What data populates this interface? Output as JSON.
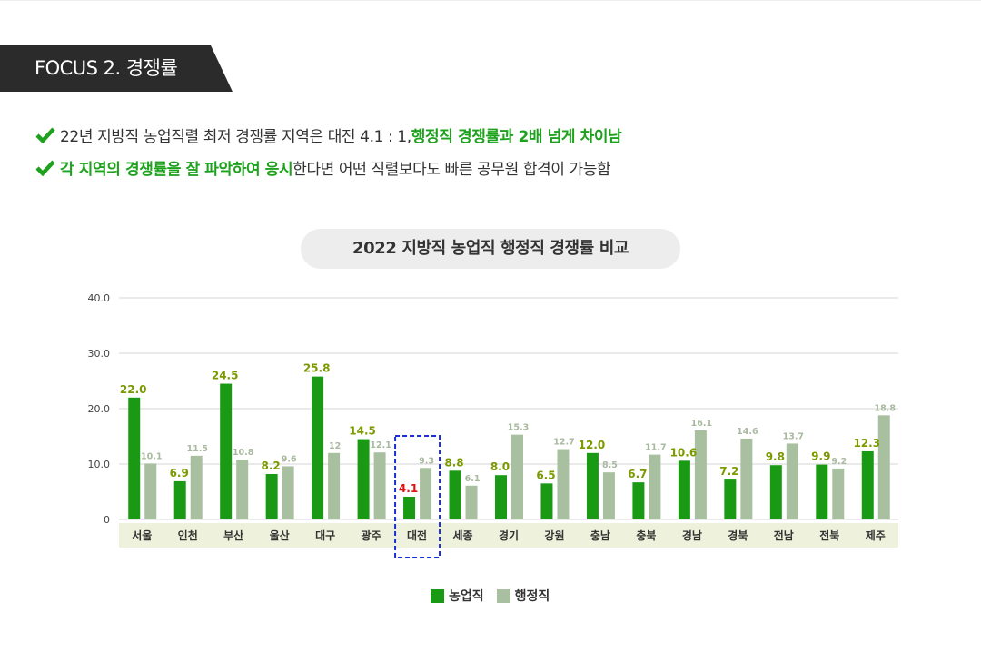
{
  "header": {
    "focus_label": "FOCUS 2. 경쟁률"
  },
  "bullets": [
    {
      "parts": [
        {
          "text": "22년 지방직 농업직렬 최저 경쟁률 지역은 대전 4.1 : 1, ",
          "highlight": false
        },
        {
          "text": "행정직 경쟁률과 2배 넘게 차이남",
          "highlight": true
        }
      ]
    },
    {
      "parts": [
        {
          "text": "각 지역의 경쟁률을 잘 파악하여 응시",
          "highlight": true
        },
        {
          "text": "한다면 어떤 직렬보다도 빠른 공무원 합격이 가능함",
          "highlight": false
        }
      ]
    }
  ],
  "colors": {
    "banner_bg": "#2b2b2b",
    "accent_green": "#1ea21e",
    "bar_green": "#1a9a14",
    "bar_gray": "#a9c0a0",
    "label_green": "#7a9a00",
    "label_gray": "#a9b9a0",
    "label_highlight": "#e01010",
    "category_band": "#eef2dc",
    "highlight_box": "#1a2fd6"
  },
  "chart_data": {
    "type": "bar",
    "title": "2022 지방직 농업직 행정직 경쟁률 비교",
    "categories": [
      "서울",
      "인천",
      "부산",
      "울산",
      "대구",
      "광주",
      "대전",
      "세종",
      "경기",
      "강원",
      "충남",
      "충북",
      "경남",
      "경북",
      "전남",
      "전북",
      "제주"
    ],
    "series": [
      {
        "name": "농업직",
        "values": [
          22.0,
          6.9,
          24.5,
          8.2,
          25.8,
          14.5,
          4.1,
          8.8,
          8.0,
          6.5,
          12.0,
          6.7,
          10.6,
          7.2,
          9.8,
          9.9,
          12.3
        ],
        "labels": [
          "22.0",
          "6.9",
          "24.5",
          "8.2",
          "25.8",
          "14.5",
          "4.1",
          "8.8",
          "8.0",
          "6.5",
          "12.0",
          "6.7",
          "10.6",
          "7.2",
          "9.8",
          "9.9",
          "12.3"
        ]
      },
      {
        "name": "행정직",
        "values": [
          10.1,
          11.5,
          10.8,
          9.6,
          12,
          12.1,
          9.3,
          6.1,
          15.3,
          12.7,
          8.5,
          11.7,
          16.1,
          14.6,
          13.7,
          9.2,
          18.8
        ],
        "labels": [
          "10.1",
          "11.5",
          "10.8",
          "9.6",
          "12",
          "12.1",
          "9.3",
          "6.1",
          "15.3",
          "12.7",
          "8.5",
          "11.7",
          "16.1",
          "14.6",
          "13.7",
          "9.2",
          "18.8"
        ]
      }
    ],
    "y_ticks": [
      "0",
      "10.0",
      "20.0",
      "30.0",
      "40.0"
    ],
    "ylim": [
      0,
      40
    ],
    "grid": true,
    "highlight_category": "대전",
    "legend_position": "bottom-center"
  }
}
